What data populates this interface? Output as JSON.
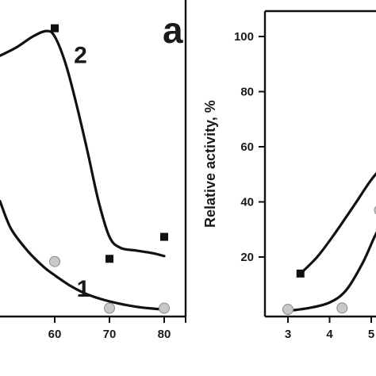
{
  "chart_data": [
    {
      "type": "line",
      "panel_label": "a",
      "xlim": [
        50,
        83
      ],
      "ylim": [
        0,
        110
      ],
      "x_ticks": [
        60,
        70,
        80
      ],
      "y_ticks": [],
      "grid": false,
      "legend": "none",
      "series": [
        {
          "name": "1",
          "marker": "circle",
          "color": "#c8c8c8",
          "points": [
            {
              "x": 60,
              "y": 18
            },
            {
              "x": 70,
              "y": 1
            },
            {
              "x": 80,
              "y": 1
            }
          ],
          "curve": [
            [
              50,
              40
            ],
            [
              52,
              30
            ],
            [
              55,
              22
            ],
            [
              58,
              16
            ],
            [
              60,
              13
            ],
            [
              63,
              9
            ],
            [
              66,
              6
            ],
            [
              70,
              3.5
            ],
            [
              75,
              1.5
            ],
            [
              80,
              0.5
            ]
          ]
        },
        {
          "name": "2",
          "marker": "square",
          "color": "#111111",
          "points": [
            {
              "x": 60,
              "y": 103
            },
            {
              "x": 70,
              "y": 19
            },
            {
              "x": 80,
              "y": 27
            }
          ],
          "curve": [
            [
              50,
              93
            ],
            [
              53,
              96
            ],
            [
              56,
              100
            ],
            [
              58.5,
              102
            ],
            [
              60,
              100
            ],
            [
              62,
              90
            ],
            [
              64,
              75
            ],
            [
              66,
              58
            ],
            [
              68,
              40
            ],
            [
              70,
              27
            ],
            [
              72,
              23
            ],
            [
              75,
              22
            ],
            [
              78,
              21
            ],
            [
              80,
              20
            ]
          ]
        }
      ]
    },
    {
      "type": "line",
      "ylabel": "Relative activity, %",
      "xlim": [
        2.6,
        5.4
      ],
      "ylim": [
        0,
        110
      ],
      "x_ticks": [
        3,
        4,
        5
      ],
      "y_ticks": [
        20,
        40,
        60,
        80,
        100
      ],
      "grid": false,
      "legend": "none",
      "series": [
        {
          "name": "",
          "marker": "square",
          "color": "#111111",
          "points": [
            {
              "x": 3.3,
              "y": 14
            }
          ],
          "curve": [
            [
              3.3,
              14
            ],
            [
              3.7,
              20
            ],
            [
              4.1,
              28
            ],
            [
              4.6,
              39
            ],
            [
              5.0,
              48
            ],
            [
              5.4,
              55
            ]
          ]
        },
        {
          "name": "",
          "marker": "circle",
          "color": "#c8c8c8",
          "points": [
            {
              "x": 3.0,
              "y": 1
            },
            {
              "x": 4.3,
              "y": 1.5
            },
            {
              "x": 5.2,
              "y": 37
            }
          ],
          "curve": [
            [
              3.0,
              0.5
            ],
            [
              3.5,
              1.5
            ],
            [
              4.0,
              3.5
            ],
            [
              4.4,
              8
            ],
            [
              4.8,
              18
            ],
            [
              5.1,
              28
            ],
            [
              5.4,
              36
            ]
          ]
        }
      ]
    }
  ]
}
